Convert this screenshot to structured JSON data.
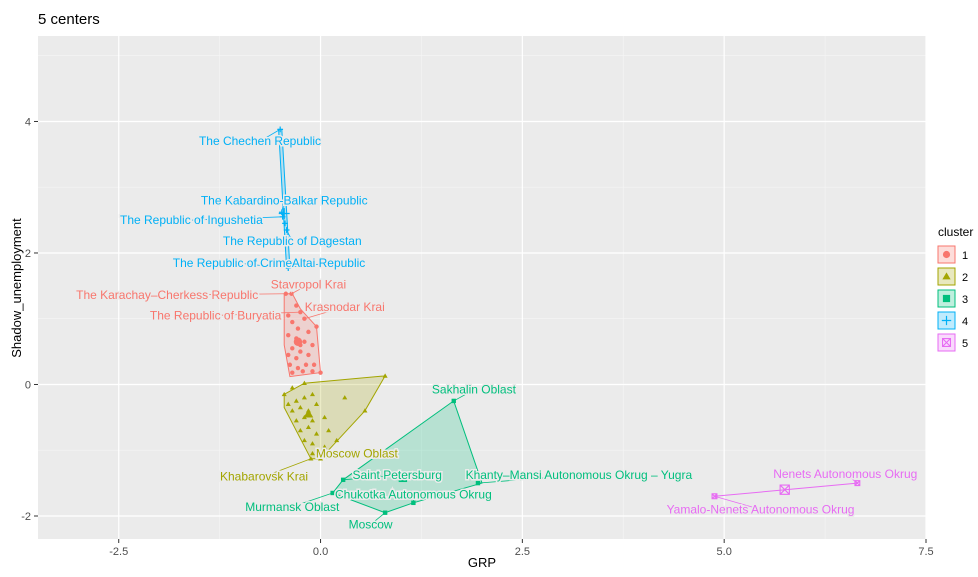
{
  "chart_data": {
    "type": "scatter",
    "title": "5 centers",
    "xlabel": "GRP",
    "ylabel": "Shadow_unemployment",
    "xlim": [
      -3.5,
      7.5
    ],
    "ylim": [
      -2.35,
      5.3
    ],
    "xticks": [
      -2.5,
      0.0,
      2.5,
      5.0,
      7.5
    ],
    "xtick_labels": [
      "-2.5",
      "0.0",
      "2.5",
      "5.0",
      "7.5"
    ],
    "yticks": [
      -2,
      0,
      2,
      4
    ],
    "ytick_labels": [
      "-2",
      "0",
      "2",
      "4"
    ],
    "grid": true,
    "legend": {
      "title": "cluster",
      "position": "right",
      "entries": [
        "1",
        "2",
        "3",
        "4",
        "5"
      ]
    },
    "series": [
      {
        "name": "1",
        "color": "#F8766D",
        "shape": "circle",
        "hull": [
          [
            -0.45,
            1.38
          ],
          [
            -0.35,
            1.38
          ],
          [
            -0.25,
            1.15
          ],
          [
            -0.05,
            0.88
          ],
          [
            0.0,
            0.18
          ],
          [
            -0.38,
            0.12
          ],
          [
            -0.45,
            0.6
          ]
        ],
        "points": [
          [
            -0.43,
            1.38
          ],
          [
            -0.36,
            1.38
          ],
          [
            -0.3,
            1.2
          ],
          [
            -0.25,
            1.1
          ],
          [
            -0.2,
            1.0
          ],
          [
            -0.05,
            0.88
          ],
          [
            -0.4,
            1.05
          ],
          [
            -0.35,
            0.95
          ],
          [
            -0.28,
            0.85
          ],
          [
            -0.4,
            0.75
          ],
          [
            -0.3,
            0.7
          ],
          [
            -0.2,
            0.65
          ],
          [
            -0.1,
            0.6
          ],
          [
            -0.35,
            0.55
          ],
          [
            -0.25,
            0.5
          ],
          [
            -0.4,
            0.45
          ],
          [
            -0.3,
            0.4
          ],
          [
            -0.15,
            0.45
          ],
          [
            -0.38,
            0.3
          ],
          [
            -0.28,
            0.25
          ],
          [
            -0.18,
            0.3
          ],
          [
            -0.08,
            0.3
          ],
          [
            -0.35,
            0.18
          ],
          [
            -0.22,
            0.2
          ],
          [
            -0.1,
            0.2
          ],
          [
            0.0,
            0.18
          ],
          [
            -0.25,
            0.6
          ],
          [
            -0.15,
            0.8
          ]
        ],
        "center": [
          -0.28,
          0.65
        ]
      },
      {
        "name": "2",
        "color": "#A3A500",
        "shape": "triangle",
        "hull": [
          [
            -0.45,
            -0.15
          ],
          [
            -0.2,
            0.02
          ],
          [
            0.8,
            0.13
          ],
          [
            0.55,
            -0.4
          ],
          [
            0.0,
            -1.13
          ],
          [
            -0.12,
            -1.13
          ],
          [
            -0.45,
            -0.35
          ]
        ],
        "points": [
          [
            -0.45,
            -0.15
          ],
          [
            -0.35,
            -0.05
          ],
          [
            -0.2,
            0.02
          ],
          [
            0.8,
            0.13
          ],
          [
            0.3,
            -0.2
          ],
          [
            0.55,
            -0.4
          ],
          [
            -0.4,
            -0.3
          ],
          [
            -0.3,
            -0.25
          ],
          [
            -0.2,
            -0.2
          ],
          [
            -0.1,
            -0.15
          ],
          [
            -0.35,
            -0.4
          ],
          [
            -0.25,
            -0.35
          ],
          [
            -0.15,
            -0.4
          ],
          [
            -0.05,
            -0.3
          ],
          [
            -0.3,
            -0.55
          ],
          [
            -0.2,
            -0.5
          ],
          [
            -0.1,
            -0.55
          ],
          [
            0.05,
            -0.5
          ],
          [
            -0.25,
            -0.7
          ],
          [
            -0.15,
            -0.65
          ],
          [
            -0.05,
            -0.75
          ],
          [
            0.1,
            -0.7
          ],
          [
            -0.2,
            -0.85
          ],
          [
            -0.1,
            -0.9
          ],
          [
            0.05,
            -0.95
          ],
          [
            0.2,
            -0.85
          ],
          [
            -0.1,
            -1.05
          ],
          [
            0.0,
            -1.13
          ],
          [
            -0.12,
            -1.13
          ]
        ],
        "center": [
          -0.15,
          -0.45
        ]
      },
      {
        "name": "3",
        "color": "#00BF7D",
        "shape": "square",
        "hull": [
          [
            1.65,
            -0.25
          ],
          [
            2.0,
            -1.5
          ],
          [
            1.15,
            -1.8
          ],
          [
            0.8,
            -1.95
          ],
          [
            0.15,
            -1.65
          ],
          [
            0.28,
            -1.45
          ]
        ],
        "points": [
          [
            1.65,
            -0.25
          ],
          [
            1.95,
            -1.5
          ],
          [
            0.28,
            -1.45
          ],
          [
            1.15,
            -1.8
          ],
          [
            0.8,
            -1.95
          ],
          [
            0.15,
            -1.65
          ]
        ],
        "center": [
          1.02,
          -1.42
        ]
      },
      {
        "name": "4",
        "color": "#00B0F6",
        "shape": "plus",
        "hull": [
          [
            -0.52,
            3.88
          ],
          [
            -0.48,
            3.88
          ],
          [
            -0.38,
            1.77
          ],
          [
            -0.42,
            1.77
          ]
        ],
        "points": [
          [
            -0.5,
            3.88
          ],
          [
            -0.48,
            2.62
          ],
          [
            -0.47,
            2.55
          ],
          [
            -0.44,
            2.45
          ],
          [
            -0.42,
            2.35
          ],
          [
            -0.4,
            1.77
          ]
        ],
        "center": [
          -0.45,
          2.6
        ]
      },
      {
        "name": "5",
        "color": "#E76BF3",
        "shape": "boxed-x",
        "hull": [
          [
            4.88,
            -1.7
          ],
          [
            6.65,
            -1.5
          ]
        ],
        "points": [
          [
            4.88,
            -1.7
          ],
          [
            6.65,
            -1.5
          ]
        ],
        "center": [
          5.75,
          -1.6
        ]
      }
    ],
    "annotations": [
      {
        "text": "The Chechen Republic",
        "x": -0.5,
        "y": 3.88,
        "label_x": -0.75,
        "label_y": 3.7,
        "cluster": "4"
      },
      {
        "text": "The Kabardino-Balkar Republic",
        "x": -0.48,
        "y": 2.62,
        "label_x": -0.45,
        "label_y": 2.8,
        "cluster": "4"
      },
      {
        "text": "The Republic of Ingushetia",
        "x": -0.47,
        "y": 2.55,
        "label_x": -1.6,
        "label_y": 2.5,
        "cluster": "4"
      },
      {
        "text": "The Republic of Dagestan",
        "x": -0.42,
        "y": 2.35,
        "label_x": -0.35,
        "label_y": 2.18,
        "cluster": "4"
      },
      {
        "text": "The Republic of Crimea",
        "x": -0.42,
        "y": 1.77,
        "label_x": -1.05,
        "label_y": 1.85,
        "cluster": "4"
      },
      {
        "text": "Altai Republic",
        "x": -0.4,
        "y": 1.77,
        "label_x": 0.1,
        "label_y": 1.85,
        "cluster": "4"
      },
      {
        "text": "Stavropol Krai",
        "x": -0.36,
        "y": 1.38,
        "label_x": -0.15,
        "label_y": 1.52,
        "cluster": "1"
      },
      {
        "text": "The Karachay–Cherkess Republic",
        "x": -0.43,
        "y": 1.38,
        "label_x": -1.9,
        "label_y": 1.36,
        "cluster": "1"
      },
      {
        "text": "Krasnodar Krai",
        "x": -0.2,
        "y": 1.0,
        "label_x": 0.3,
        "label_y": 1.18,
        "cluster": "1"
      },
      {
        "text": "The Republic of Buryatia",
        "x": -0.25,
        "y": 1.1,
        "label_x": -1.3,
        "label_y": 1.05,
        "cluster": "1"
      },
      {
        "text": "Sakhalin Oblast",
        "x": 1.65,
        "y": -0.25,
        "label_x": 1.9,
        "label_y": -0.08,
        "cluster": "3"
      },
      {
        "text": "Moscow Oblast",
        "x": 0.0,
        "y": -1.13,
        "label_x": 0.45,
        "label_y": -1.05,
        "cluster": "2"
      },
      {
        "text": "Khabarovsk Krai",
        "x": -0.12,
        "y": -1.13,
        "label_x": -0.7,
        "label_y": -1.4,
        "cluster": "2"
      },
      {
        "text": "Saint Petersburg",
        "x": 0.28,
        "y": -1.45,
        "label_x": 0.95,
        "label_y": -1.38,
        "cluster": "3"
      },
      {
        "text": "Khanty–Mansi Autonomous Okrug – Yugra",
        "x": 1.95,
        "y": -1.5,
        "label_x": 3.2,
        "label_y": -1.38,
        "cluster": "3"
      },
      {
        "text": "Chukotka Autonomous Okrug",
        "x": 1.15,
        "y": -1.8,
        "label_x": 1.15,
        "label_y": -1.67,
        "cluster": "3"
      },
      {
        "text": "Murmansk Oblast",
        "x": 0.15,
        "y": -1.65,
        "label_x": -0.35,
        "label_y": -1.86,
        "cluster": "3"
      },
      {
        "text": "Moscow",
        "x": 0.8,
        "y": -1.95,
        "label_x": 0.62,
        "label_y": -2.13,
        "cluster": "3"
      },
      {
        "text": "Nenets Autonomous Okrug",
        "x": 6.65,
        "y": -1.5,
        "label_x": 6.5,
        "label_y": -1.36,
        "cluster": "5"
      },
      {
        "text": "Yamalo-Nenets Autonomous Okrug",
        "x": 4.88,
        "y": -1.7,
        "label_x": 5.45,
        "label_y": -1.9,
        "cluster": "5"
      }
    ]
  }
}
